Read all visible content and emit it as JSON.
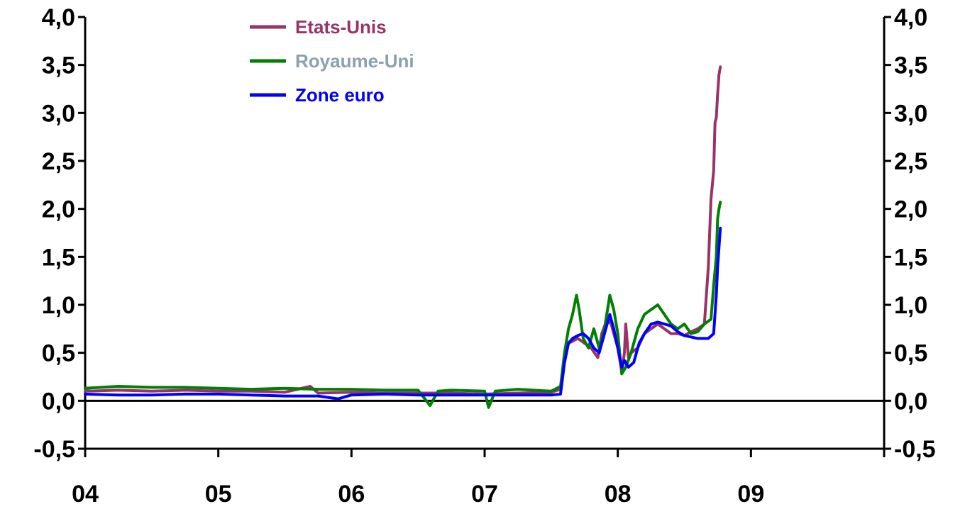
{
  "chart_data": {
    "type": "line",
    "title": "",
    "xlabel": "",
    "ylabel": "",
    "ylim": [
      -0.5,
      4.0
    ],
    "y_ticks": [
      "-0,5",
      "0,0",
      "0,5",
      "1,0",
      "1,5",
      "2,0",
      "2,5",
      "3,0",
      "3,5",
      "4,0"
    ],
    "y_tick_values": [
      -0.5,
      0.0,
      0.5,
      1.0,
      1.5,
      2.0,
      2.5,
      3.0,
      3.5,
      4.0
    ],
    "y_axis_sides": [
      "left",
      "right"
    ],
    "xlim": [
      2004.0,
      2010.0
    ],
    "x_ticks": [
      "04",
      "05",
      "06",
      "07",
      "08",
      "09"
    ],
    "x_tick_values": [
      2004.0,
      2005.0,
      2006.0,
      2007.0,
      2008.0,
      2009.0
    ],
    "grid": false,
    "zero_line": true,
    "legend_position": "top-center",
    "series": [
      {
        "name": "Etats-Unis",
        "color": "#993366",
        "x": [
          2004.0,
          2004.25,
          2004.5,
          2004.75,
          2005.0,
          2005.25,
          2005.5,
          2005.69,
          2005.75,
          2006.0,
          2006.25,
          2006.5,
          2006.75,
          2007.0,
          2007.25,
          2007.5,
          2007.57,
          2007.6,
          2007.63,
          2007.66,
          2007.7,
          2007.75,
          2007.8,
          2007.85,
          2007.88,
          2007.92,
          2007.95,
          2008.0,
          2008.03,
          2008.05,
          2008.06,
          2008.08,
          2008.1,
          2008.15,
          2008.2,
          2008.25,
          2008.3,
          2008.35,
          2008.4,
          2008.45,
          2008.5,
          2008.55,
          2008.6,
          2008.65,
          2008.68,
          2008.7,
          2008.72,
          2008.73,
          2008.74,
          2008.75,
          2008.76,
          2008.77
        ],
        "values": [
          0.1,
          0.11,
          0.1,
          0.11,
          0.1,
          0.1,
          0.09,
          0.15,
          0.08,
          0.09,
          0.08,
          0.08,
          0.08,
          0.07,
          0.08,
          0.09,
          0.12,
          0.45,
          0.6,
          0.62,
          0.65,
          0.6,
          0.55,
          0.45,
          0.7,
          0.85,
          0.8,
          0.55,
          0.3,
          0.5,
          0.8,
          0.45,
          0.5,
          0.55,
          0.7,
          0.75,
          0.8,
          0.75,
          0.7,
          0.7,
          0.68,
          0.72,
          0.75,
          0.8,
          1.4,
          2.1,
          2.4,
          2.9,
          2.95,
          3.2,
          3.4,
          3.48
        ]
      },
      {
        "name": "Royaume-Uni",
        "color": "#008000",
        "x": [
          2004.0,
          2004.25,
          2004.5,
          2004.75,
          2005.0,
          2005.25,
          2005.5,
          2005.75,
          2006.0,
          2006.25,
          2006.5,
          2006.59,
          2006.65,
          2006.75,
          2007.0,
          2007.03,
          2007.08,
          2007.25,
          2007.5,
          2007.57,
          2007.6,
          2007.63,
          2007.66,
          2007.69,
          2007.71,
          2007.74,
          2007.78,
          2007.82,
          2007.86,
          2007.9,
          2007.94,
          2007.97,
          2008.0,
          2008.03,
          2008.06,
          2008.1,
          2008.15,
          2008.2,
          2008.25,
          2008.3,
          2008.35,
          2008.4,
          2008.45,
          2008.5,
          2008.55,
          2008.6,
          2008.65,
          2008.7,
          2008.72,
          2008.74,
          2008.75,
          2008.76,
          2008.77
        ],
        "values": [
          0.13,
          0.15,
          0.14,
          0.14,
          0.13,
          0.12,
          0.13,
          0.12,
          0.12,
          0.11,
          0.11,
          -0.05,
          0.1,
          0.11,
          0.1,
          -0.07,
          0.1,
          0.12,
          0.1,
          0.15,
          0.5,
          0.75,
          0.9,
          1.1,
          0.95,
          0.65,
          0.55,
          0.75,
          0.55,
          0.75,
          1.1,
          0.95,
          0.7,
          0.28,
          0.35,
          0.5,
          0.75,
          0.9,
          0.95,
          1.0,
          0.9,
          0.8,
          0.75,
          0.8,
          0.7,
          0.72,
          0.8,
          0.85,
          1.2,
          1.5,
          1.9,
          2.0,
          2.07
        ]
      },
      {
        "name": "Zone euro",
        "color": "#0000ff",
        "x": [
          2004.0,
          2004.25,
          2004.5,
          2004.75,
          2005.0,
          2005.25,
          2005.5,
          2005.75,
          2005.9,
          2006.0,
          2006.25,
          2006.5,
          2006.75,
          2007.0,
          2007.25,
          2007.5,
          2007.57,
          2007.6,
          2007.63,
          2007.66,
          2007.7,
          2007.74,
          2007.78,
          2007.82,
          2007.86,
          2007.9,
          2007.94,
          2007.97,
          2008.0,
          2008.03,
          2008.05,
          2008.08,
          2008.12,
          2008.16,
          2008.2,
          2008.25,
          2008.3,
          2008.35,
          2008.4,
          2008.45,
          2008.5,
          2008.6,
          2008.68,
          2008.72,
          2008.74,
          2008.75,
          2008.76,
          2008.77
        ],
        "values": [
          0.07,
          0.06,
          0.06,
          0.07,
          0.07,
          0.06,
          0.05,
          0.05,
          0.02,
          0.06,
          0.07,
          0.06,
          0.06,
          0.06,
          0.06,
          0.06,
          0.07,
          0.4,
          0.6,
          0.65,
          0.68,
          0.7,
          0.65,
          0.55,
          0.5,
          0.7,
          0.9,
          0.75,
          0.55,
          0.35,
          0.42,
          0.35,
          0.4,
          0.6,
          0.7,
          0.8,
          0.82,
          0.8,
          0.78,
          0.72,
          0.68,
          0.65,
          0.65,
          0.7,
          1.1,
          1.4,
          1.6,
          1.8
        ]
      }
    ]
  }
}
